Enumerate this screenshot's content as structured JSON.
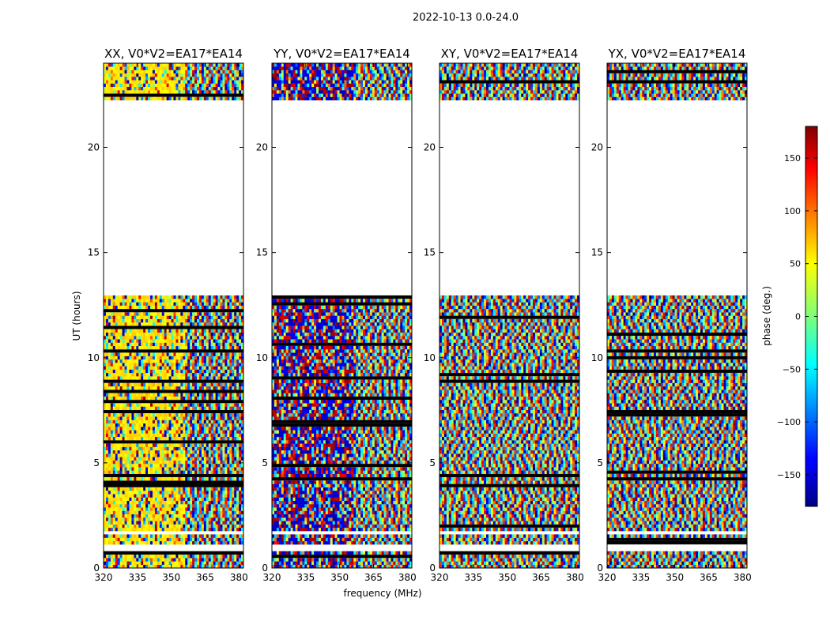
{
  "figure_title": "2022-10-13 0.0-24.0",
  "chart_data": {
    "type": "heatmap",
    "suptitle": "2022-10-13 0.0-24.0",
    "xlabel": "frequency (MHz)",
    "ylabel": "UT (hours)",
    "xlim": [
      320,
      382
    ],
    "ylim": [
      0,
      24
    ],
    "xticks": [
      320,
      335,
      350,
      365,
      380
    ],
    "yticks": [
      0,
      5,
      10,
      15,
      20
    ],
    "panels": [
      {
        "title": "XX, V0*V2=EA17*EA14",
        "pol": "XX"
      },
      {
        "title": "YY, V0*V2=EA17*EA14",
        "pol": "YY"
      },
      {
        "title": "XY, V0*V2=EA17*EA14",
        "pol": "XY"
      },
      {
        "title": "YX, V0*V2=EA17*EA14",
        "pol": "YX"
      }
    ],
    "data_gaps_hours": [
      [
        0.75,
        1.05
      ],
      [
        1.45,
        1.7
      ],
      [
        12.9,
        22.2
      ]
    ],
    "colorbar": {
      "label": "phase (deg.)",
      "range": [
        -180,
        180
      ],
      "ticks": [
        -150,
        -100,
        -50,
        0,
        50,
        100,
        150
      ],
      "colormap": "jet"
    }
  }
}
